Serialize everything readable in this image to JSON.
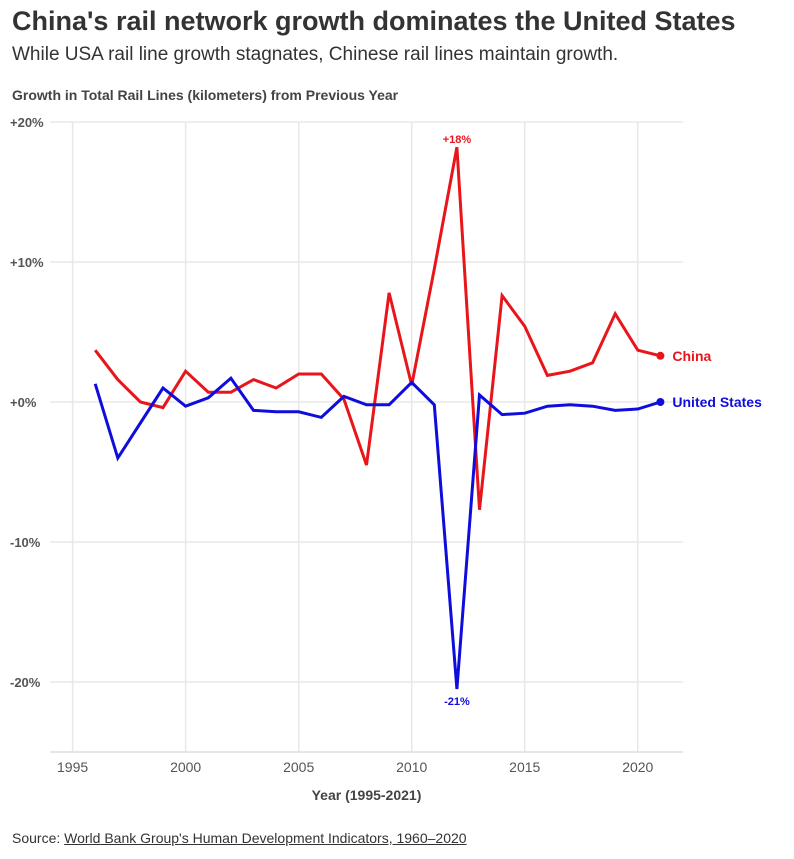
{
  "title": "China's rail network growth dominates the United States",
  "subtitle": "While USA rail line growth stagnates, Chinese rail lines maintain growth.",
  "source": {
    "prefix": "Source: ",
    "link_text": "World Bank Group's Human Development Indicators, 1960–2020"
  },
  "colors": {
    "china": "#e8161b",
    "us": "#0f0ddb",
    "grid": "#e8e8e8",
    "axis_text": "#555555"
  },
  "chart_data": {
    "type": "line",
    "title": "Growth in Total Rail Lines (kilometers) from Previous Year",
    "xlabel": "Year (1995-2021)",
    "ylabel": "",
    "xlim": [
      1994,
      2022
    ],
    "ylim": [
      -25,
      20
    ],
    "x_ticks": [
      1995,
      2000,
      2005,
      2010,
      2015,
      2020
    ],
    "x_tick_labels": [
      "1995",
      "2000",
      "2005",
      "2010",
      "2015",
      "2020"
    ],
    "y_ticks": [
      20,
      10,
      0,
      -10,
      -20
    ],
    "y_tick_labels": [
      "+20%",
      "+10%",
      "+0%",
      "-10%",
      "-20%"
    ],
    "grid": true,
    "x": [
      1996,
      1997,
      1998,
      1999,
      2000,
      2001,
      2002,
      2003,
      2004,
      2005,
      2006,
      2007,
      2008,
      2009,
      2010,
      2011,
      2012,
      2013,
      2014,
      2015,
      2016,
      2017,
      2018,
      2019,
      2020,
      2021
    ],
    "series": [
      {
        "name": "China",
        "color": "#e8161b",
        "values": [
          3.7,
          1.6,
          0.0,
          -0.4,
          2.2,
          0.7,
          0.7,
          1.6,
          1.0,
          2.0,
          2.0,
          0.2,
          -4.5,
          7.8,
          1.2,
          9.5,
          18.2,
          -7.7,
          7.6,
          5.4,
          1.9,
          2.2,
          2.8,
          6.3,
          3.7,
          3.3
        ]
      },
      {
        "name": "United States",
        "color": "#0f0ddb",
        "values": [
          1.3,
          -4.0,
          -1.5,
          1.0,
          -0.3,
          0.3,
          1.7,
          -0.6,
          -0.7,
          -0.7,
          -1.1,
          0.4,
          -0.2,
          -0.2,
          1.4,
          -0.2,
          -20.5,
          0.5,
          -0.9,
          -0.8,
          -0.3,
          -0.2,
          -0.3,
          -0.6,
          -0.5,
          0.0
        ]
      }
    ],
    "annotations": [
      {
        "text": "+18%",
        "x": 2012,
        "y": 18.2,
        "series": "China",
        "position": "above"
      },
      {
        "text": "-21%",
        "x": 2012,
        "y": -20.5,
        "series": "United States",
        "position": "below"
      }
    ],
    "legend": "inline-end-labels"
  }
}
